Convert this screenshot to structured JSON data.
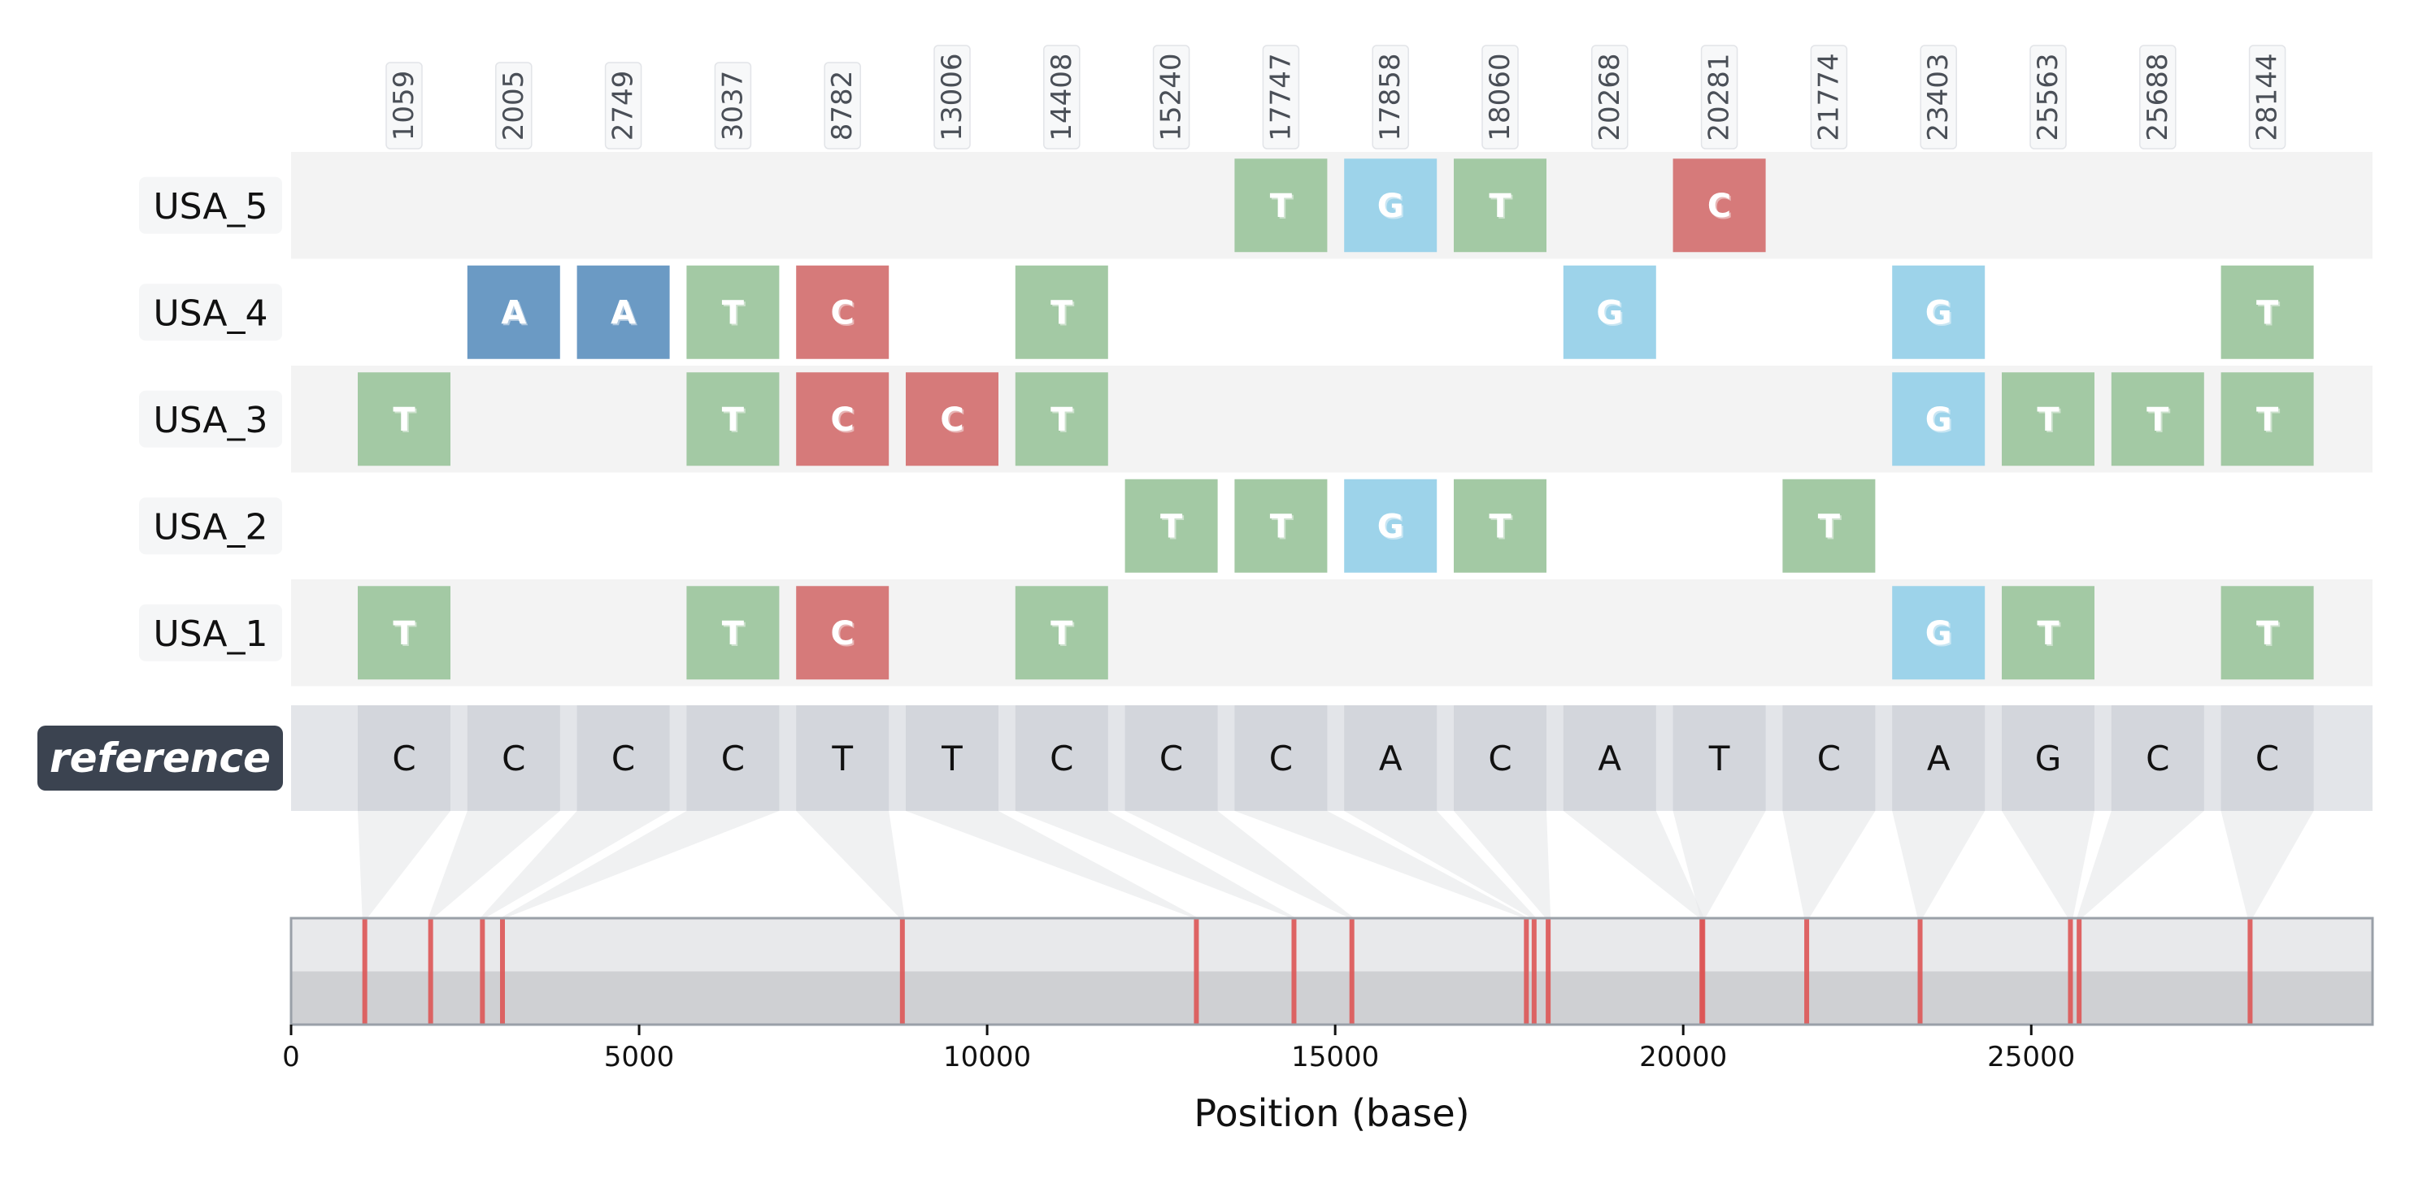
{
  "chart_data": {
    "type": "variant-map",
    "xlabel": "Position (base)",
    "xlim": [
      0,
      29903
    ],
    "xticks": [
      0,
      5000,
      10000,
      15000,
      20000,
      25000
    ],
    "positions": [
      1059,
      2005,
      2749,
      3037,
      8782,
      13006,
      14408,
      15240,
      17747,
      17858,
      18060,
      20268,
      20281,
      21774,
      23403,
      25563,
      25688,
      28144
    ],
    "reference": {
      "label": "reference",
      "bases": [
        "C",
        "C",
        "C",
        "C",
        "T",
        "T",
        "C",
        "C",
        "C",
        "A",
        "C",
        "A",
        "T",
        "C",
        "A",
        "G",
        "C",
        "C"
      ]
    },
    "samples": [
      {
        "name": "USA_5",
        "bases": [
          "",
          "",
          "",
          "",
          "",
          "",
          "",
          "",
          "T",
          "G",
          "T",
          "",
          "C",
          "",
          "",
          "",
          "",
          ""
        ]
      },
      {
        "name": "USA_4",
        "bases": [
          "",
          "A",
          "A",
          "T",
          "C",
          "",
          "T",
          "",
          "",
          "",
          "",
          "G",
          "",
          "",
          "G",
          "",
          "",
          "T"
        ]
      },
      {
        "name": "USA_3",
        "bases": [
          "T",
          "",
          "",
          "T",
          "C",
          "C",
          "T",
          "",
          "",
          "",
          "",
          "",
          "",
          "",
          "G",
          "T",
          "T",
          "T"
        ]
      },
      {
        "name": "USA_2",
        "bases": [
          "",
          "",
          "",
          "",
          "",
          "",
          "",
          "T",
          "T",
          "G",
          "T",
          "",
          "",
          "T",
          "",
          "",
          "",
          ""
        ]
      },
      {
        "name": "USA_1",
        "bases": [
          "T",
          "",
          "",
          "T",
          "C",
          "",
          "T",
          "",
          "",
          "",
          "",
          "",
          "",
          "",
          "G",
          "T",
          "",
          "T"
        ]
      }
    ],
    "base_colors": {
      "A": "#6b9ac4",
      "C": "#d67a7a",
      "G": "#9dd3ea",
      "T": "#a3c9a4"
    },
    "marker_color": "#dd5555",
    "label_box_color": "#f5f6f7",
    "reference_box_color": "#3b4350",
    "row_stripe_color": "#f3f3f3",
    "reference_band_color": "#e3e5e9",
    "reference_cell_color": "#d3d6dc"
  }
}
